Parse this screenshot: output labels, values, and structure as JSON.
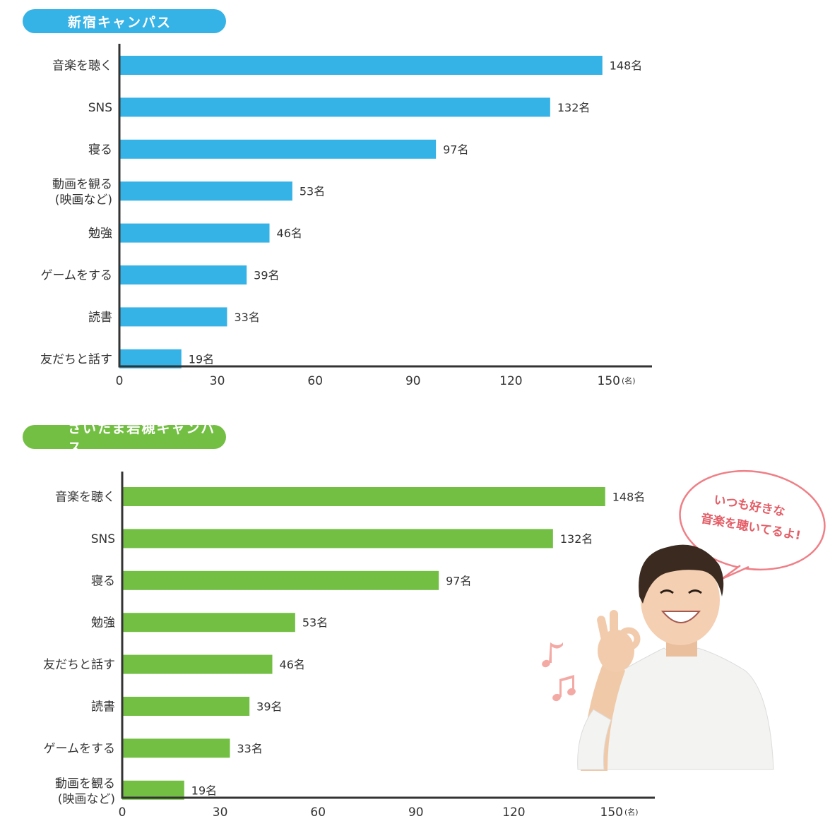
{
  "charts": [
    {
      "heading": "新宿キャンパス",
      "color": "#35b2e6"
    },
    {
      "heading": "さいたま岩槻キャンパス",
      "color": "#73bf43"
    }
  ],
  "bubble": {
    "line1": "いつも好きな",
    "line2": "音楽を聴いてるよ!"
  },
  "chart_data": [
    {
      "type": "bar",
      "orientation": "horizontal",
      "title": "新宿キャンパス",
      "categories": [
        [
          "音楽を聴く"
        ],
        [
          "SNS"
        ],
        [
          "寝る"
        ],
        [
          "動画を観る",
          "(映画など)"
        ],
        [
          "勉強"
        ],
        [
          "ゲームをする"
        ],
        [
          "読書"
        ],
        [
          "友だちと話す"
        ]
      ],
      "values": [
        148,
        132,
        97,
        53,
        46,
        39,
        33,
        19
      ],
      "value_suffix": "名",
      "xticks": [
        "0",
        "30",
        "60",
        "90",
        "120",
        "150"
      ],
      "unit": "(名)",
      "xlim": [
        0,
        150
      ],
      "grid": false,
      "color": "#35b2e6"
    },
    {
      "type": "bar",
      "orientation": "horizontal",
      "title": "さいたま岩槻キャンパス",
      "categories": [
        [
          "音楽を聴く"
        ],
        [
          "SNS"
        ],
        [
          "寝る"
        ],
        [
          "勉強"
        ],
        [
          "友だちと話す"
        ],
        [
          "読書"
        ],
        [
          "ゲームをする"
        ],
        [
          "動画を観る",
          "(映画など)"
        ]
      ],
      "values": [
        148,
        132,
        97,
        53,
        46,
        39,
        33,
        19
      ],
      "value_suffix": "名",
      "xticks": [
        "0",
        "30",
        "60",
        "90",
        "120",
        "150"
      ],
      "unit": "(名)",
      "xlim": [
        0,
        150
      ],
      "grid": false,
      "color": "#73bf43"
    }
  ]
}
